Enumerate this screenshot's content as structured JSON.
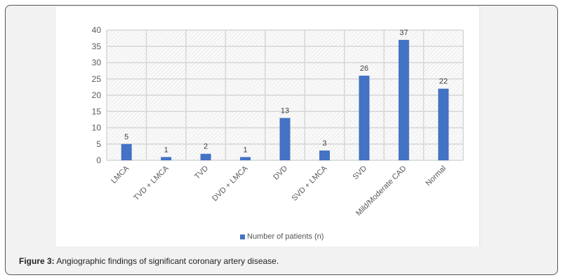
{
  "chart_data": {
    "type": "bar",
    "categories": [
      "LMCA",
      "TVD + LMCA",
      "TVD",
      "DVD + LMCA",
      "DVD",
      "SVD + LMCA",
      "SVD",
      "Mild/Moderate CAD",
      "Normal"
    ],
    "series": [
      {
        "name": "Number of patients (n)",
        "values": [
          5,
          1,
          2,
          1,
          13,
          3,
          26,
          37,
          22
        ]
      }
    ],
    "yticks": [
      "0",
      "5",
      "10",
      "15",
      "20",
      "25",
      "30",
      "35",
      "40"
    ],
    "ylim": [
      0,
      40
    ],
    "grid": true,
    "legend": "bottom",
    "bar_color": "#4472c4"
  },
  "caption": {
    "label": "Figure 3:",
    "text": " Angiographic findings of significant coronary artery disease."
  }
}
